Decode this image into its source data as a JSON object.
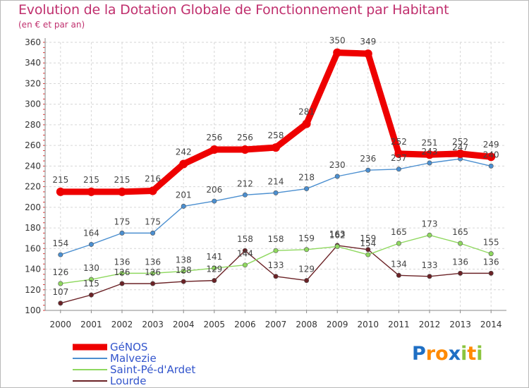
{
  "chart_data": {
    "type": "line",
    "title": "Evolution de la Dotation Globale de Fonctionnement par Habitant",
    "subtitle": "(en € et par an)",
    "categories": [
      "2000",
      "2001",
      "2002",
      "2003",
      "2004",
      "2005",
      "2006",
      "2007",
      "2008",
      "2009",
      "2010",
      "2011",
      "2012",
      "2013",
      "2014"
    ],
    "ylim": [
      100,
      360
    ],
    "yticks": [
      100,
      120,
      140,
      160,
      180,
      200,
      220,
      240,
      260,
      280,
      300,
      320,
      340,
      360
    ],
    "grid": true,
    "legend_position": "bottom-left",
    "series": [
      {
        "name": "GéNOS",
        "color": "#ee0000",
        "values": [
          215,
          215,
          215,
          216,
          242,
          256,
          256,
          258,
          281,
          350,
          349,
          252,
          251,
          252,
          249
        ],
        "labels": [
          "215",
          "215",
          "215",
          "216",
          "242",
          "256",
          "256",
          "258",
          "281",
          "350",
          "349",
          "252",
          "251",
          "252",
          "249"
        ]
      },
      {
        "name": "Malvezie",
        "color": "#4b8fd0",
        "values": [
          154,
          164,
          175,
          175,
          201,
          206,
          212,
          214,
          218,
          230,
          236,
          237,
          243,
          247,
          240
        ],
        "labels": [
          "154",
          "164",
          "175",
          "175",
          "201",
          "206",
          "212",
          "214",
          "218",
          "230",
          "236",
          "237",
          "243",
          "247",
          "240"
        ]
      },
      {
        "name": "Saint-Pé-d'Ardet",
        "color": "#8fd85f",
        "values": [
          126,
          130,
          136,
          136,
          138,
          141,
          144,
          158,
          159,
          162,
          154,
          165,
          173,
          165,
          155
        ],
        "labels": [
          "126",
          "130",
          "136",
          "136",
          "138",
          "141",
          "144",
          "158",
          "159",
          "162",
          "154",
          "165",
          "173",
          "165",
          "155"
        ]
      },
      {
        "name": "Lourde",
        "color": "#6b2226",
        "values": [
          107,
          115,
          126,
          126,
          128,
          129,
          158,
          133,
          129,
          163,
          159,
          134,
          133,
          136,
          136
        ],
        "labels": [
          "107",
          "115",
          "126",
          "126",
          "128",
          "129",
          "158",
          "133",
          "129",
          "163",
          "159",
          "134",
          "133",
          "136",
          "136"
        ]
      }
    ]
  },
  "logo": {
    "letters": [
      "P",
      "r",
      "o",
      "x",
      "i",
      "t",
      "i"
    ],
    "colors": [
      "#1f6fc4",
      "#ff8a00",
      "#ff8a00",
      "#1f6fc4",
      "#8bc53f",
      "#ff8a00",
      "#8bc53f"
    ]
  }
}
